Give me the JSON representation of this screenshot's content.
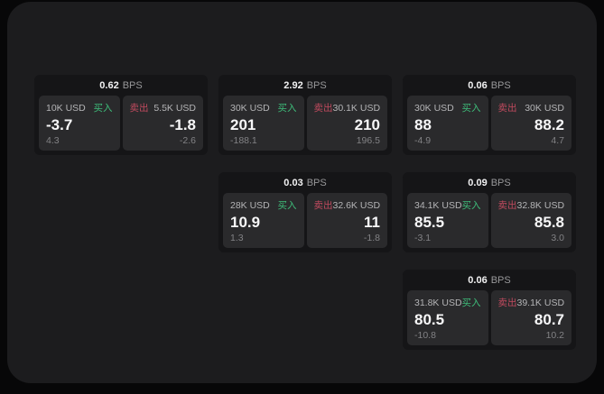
{
  "labels": {
    "bps": "BPS",
    "buy": "买入",
    "sell": "卖出"
  },
  "colors": {
    "page_bg": "#070708",
    "panel_bg": "#1c1c1e",
    "card_bg": "#151517",
    "subcard_bg": "#2a2a2c",
    "buy_green": "#3ebd7a",
    "sell_red": "#c04a5e",
    "primary_text": "#f7f7f8",
    "muted_text": "#98989a"
  },
  "cards": [
    {
      "bps": "0.62",
      "buy": {
        "amount": "10K USD",
        "value": "-3.7",
        "delta": "4.3"
      },
      "sell": {
        "amount": "5.5K USD",
        "value": "-1.8",
        "delta": "-2.6"
      }
    },
    {
      "bps": "2.92",
      "buy": {
        "amount": "30K USD",
        "value": "201",
        "delta": "-188.1"
      },
      "sell": {
        "amount": "30.1K USD",
        "value": "210",
        "delta": "196.5"
      }
    },
    {
      "bps": "0.06",
      "buy": {
        "amount": "30K USD",
        "value": "88",
        "delta": "-4.9"
      },
      "sell": {
        "amount": "30K USD",
        "value": "88.2",
        "delta": "4.7"
      }
    },
    {
      "bps": "0.03",
      "buy": {
        "amount": "28K USD",
        "value": "10.9",
        "delta": "1.3"
      },
      "sell": {
        "amount": "32.6K USD",
        "value": "11",
        "delta": "-1.8"
      }
    },
    {
      "bps": "0.09",
      "buy": {
        "amount": "34.1K USD",
        "value": "85.5",
        "delta": "-3.1"
      },
      "sell": {
        "amount": "32.8K USD",
        "value": "85.8",
        "delta": "3.0"
      }
    },
    {
      "bps": "0.06",
      "buy": {
        "amount": "31.8K USD",
        "value": "80.5",
        "delta": "-10.8"
      },
      "sell": {
        "amount": "39.1K USD",
        "value": "80.7",
        "delta": "10.2"
      }
    }
  ]
}
